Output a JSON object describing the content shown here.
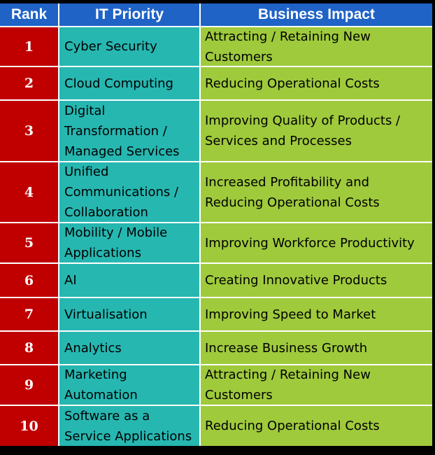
{
  "headers": {
    "rank": "Rank",
    "it_priority": "IT Priority",
    "business_impact": "Business Impact"
  },
  "rows": [
    {
      "rank": "1",
      "it_priority": "Cyber Security",
      "business_impact": "Attracting / Retaining New\nCustomers"
    },
    {
      "rank": "2",
      "it_priority": "Cloud Computing",
      "business_impact": "Reducing Operational Costs"
    },
    {
      "rank": "3",
      "it_priority": "Digital\nTransformation /\nManaged Services",
      "business_impact": "Improving Quality of Products /\nServices and Processes"
    },
    {
      "rank": "4",
      "it_priority": "Unified\nCommunications /\nCollaboration",
      "business_impact": "Increased Profitability and\nReducing Operational Costs"
    },
    {
      "rank": "5",
      "it_priority": "Mobility / Mobile\nApplications",
      "business_impact": "Improving Workforce Productivity"
    },
    {
      "rank": "6",
      "it_priority": "AI",
      "business_impact": "Creating Innovative Products"
    },
    {
      "rank": "7",
      "it_priority": "Virtualisation",
      "business_impact": "Improving Speed to Market"
    },
    {
      "rank": "8",
      "it_priority": "Analytics",
      "business_impact": "Increase Business Growth"
    },
    {
      "rank": "9",
      "it_priority": "Marketing\nAutomation",
      "business_impact": "Attracting / Retaining New\nCustomers"
    },
    {
      "rank": "10",
      "it_priority": "Software as a\nService Applications",
      "business_impact": "Reducing Operational Costs"
    }
  ]
}
